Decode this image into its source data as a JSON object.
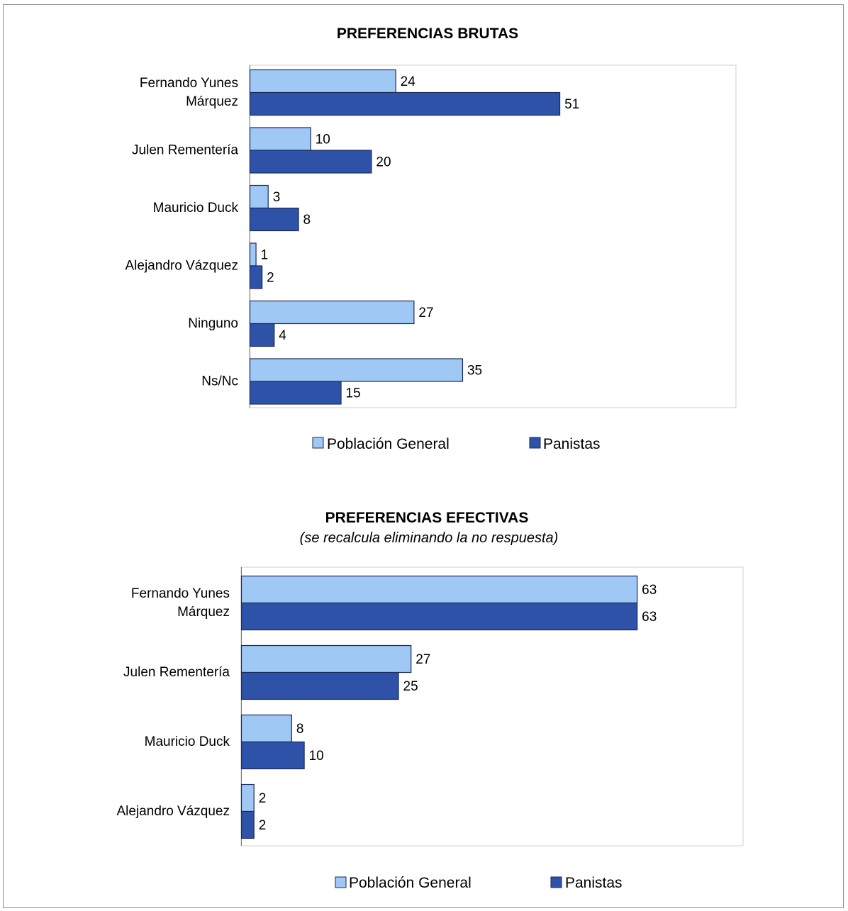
{
  "colors": {
    "poblacion": "#9fc8f5",
    "panistas": "#2e52a8",
    "bar_stroke": "#1b2a5a",
    "plot_border": "#cfcfcf"
  },
  "chart_data": [
    {
      "type": "bar",
      "orientation": "horizontal",
      "title": "PREFERENCIAS BRUTAS",
      "subtitle": "",
      "categories": [
        [
          "Fernando Yunes",
          "Márquez"
        ],
        [
          "Julen Rementería"
        ],
        [
          "Mauricio Duck"
        ],
        [
          "Alejandro Vázquez"
        ],
        [
          "Ninguno"
        ],
        [
          "Ns/Nc"
        ]
      ],
      "series": [
        {
          "name": "Población General",
          "values": [
            24,
            10,
            3,
            1,
            27,
            35
          ]
        },
        {
          "name": "Panistas",
          "values": [
            51,
            20,
            8,
            2,
            4,
            15
          ]
        }
      ],
      "xlim": [
        0,
        80
      ],
      "grid": false,
      "legend": "bottom"
    },
    {
      "type": "bar",
      "orientation": "horizontal",
      "title": "PREFERENCIAS EFECTIVAS",
      "subtitle": "(se recalcula eliminando la no respuesta)",
      "categories": [
        [
          "Fernando Yunes",
          "Márquez"
        ],
        [
          "Julen Rementería"
        ],
        [
          "Mauricio Duck"
        ],
        [
          "Alejandro Vázquez"
        ]
      ],
      "series": [
        {
          "name": "Población General",
          "values": [
            63,
            27,
            8,
            2
          ]
        },
        {
          "name": "Panistas",
          "values": [
            63,
            25,
            10,
            2
          ]
        }
      ],
      "xlim": [
        0,
        80
      ],
      "grid": false,
      "legend": "bottom"
    }
  ]
}
